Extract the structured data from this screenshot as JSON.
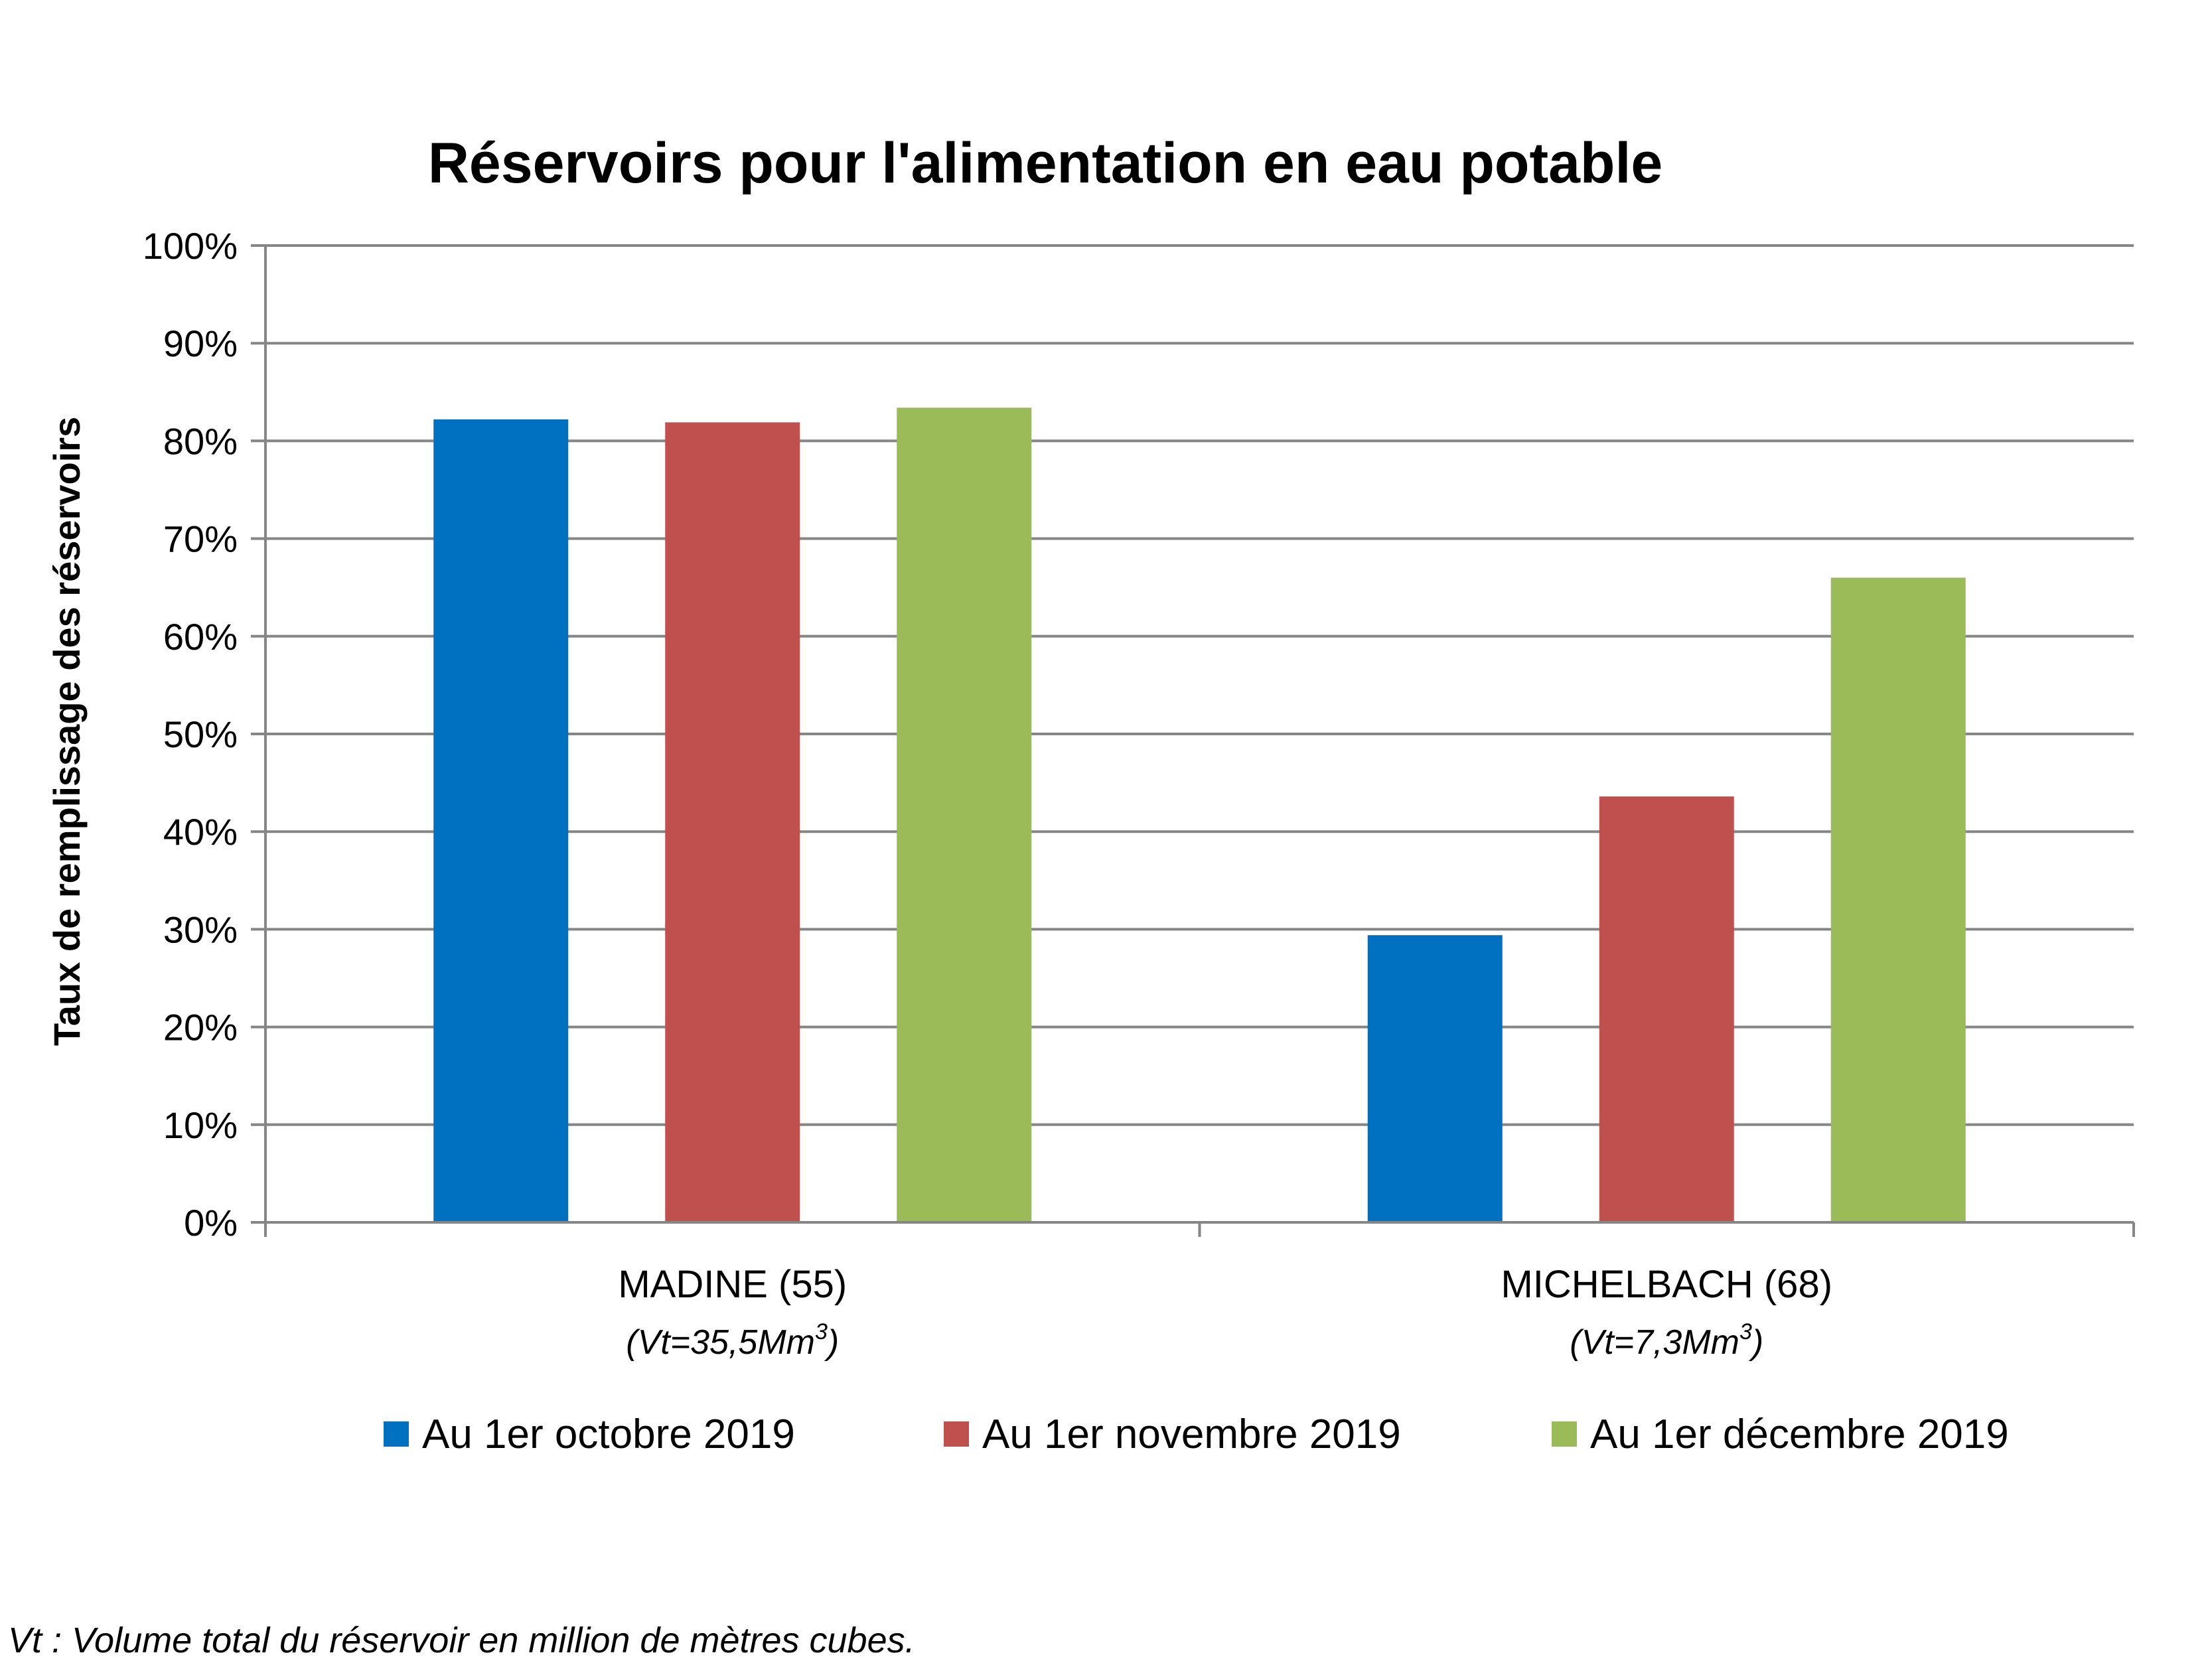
{
  "chart_data": {
    "type": "bar",
    "title": "Réservoirs pour l'alimentation en eau potable",
    "ylabel": "Taux de remplissage des réservoirs",
    "ylim": [
      0,
      100
    ],
    "ytick_step": 10,
    "ytick_labels": [
      "0%",
      "10%",
      "20%",
      "30%",
      "40%",
      "50%",
      "60%",
      "70%",
      "80%",
      "90%",
      "100%"
    ],
    "grid": true,
    "legend_position": "bottom",
    "categories": [
      "MADINE (55)",
      "MICHELBACH (68)"
    ],
    "category_subs": [
      {
        "text": "(Vt=35,5Mm",
        "sup": "3",
        "close": ")"
      },
      {
        "text": "(Vt=7,3Mm",
        "sup": "3",
        "close": ")"
      }
    ],
    "series": [
      {
        "name": "Au 1er octobre 2019",
        "color": "#0070C0",
        "values": [
          82.2,
          29.4
        ]
      },
      {
        "name": "Au 1er novembre 2019",
        "color": "#C0504D",
        "values": [
          81.9,
          43.6
        ]
      },
      {
        "name": "Au 1er décembre 2019",
        "color": "#9BBB59",
        "values": [
          83.4,
          66.0
        ]
      }
    ]
  },
  "footnote": "Vt : Volume total du réservoir en million de mètres cubes."
}
